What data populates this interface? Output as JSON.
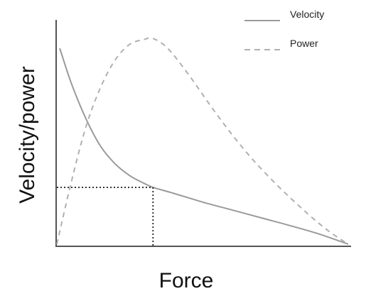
{
  "chart_data": {
    "type": "line",
    "title": "",
    "xlabel": "Force",
    "ylabel": "Velocity/power",
    "xlim": [
      0,
      1
    ],
    "ylim": [
      0,
      1
    ],
    "grid": false,
    "legend_placement": "top-right",
    "ticks": "none",
    "series": [
      {
        "name": "Velocity",
        "style": "solid",
        "color": "#9a9a9a",
        "points": [
          [
            0.01,
            1.0
          ],
          [
            0.05,
            0.82
          ],
          [
            0.1,
            0.64
          ],
          [
            0.15,
            0.5
          ],
          [
            0.2,
            0.41
          ],
          [
            0.25,
            0.35
          ],
          [
            0.3,
            0.31
          ],
          [
            0.33,
            0.29
          ],
          [
            0.4,
            0.26
          ],
          [
            0.5,
            0.215
          ],
          [
            0.6,
            0.175
          ],
          [
            0.7,
            0.135
          ],
          [
            0.8,
            0.095
          ],
          [
            0.9,
            0.052
          ],
          [
            1.0,
            0.0
          ]
        ]
      },
      {
        "name": "Power",
        "style": "dashed",
        "color": "#b0b0b0",
        "points": [
          [
            0.0,
            0.0
          ],
          [
            0.05,
            0.32
          ],
          [
            0.1,
            0.6
          ],
          [
            0.15,
            0.8
          ],
          [
            0.2,
            0.94
          ],
          [
            0.25,
            1.02
          ],
          [
            0.3,
            1.045
          ],
          [
            0.33,
            1.05
          ],
          [
            0.38,
            1.0
          ],
          [
            0.45,
            0.87
          ],
          [
            0.55,
            0.66
          ],
          [
            0.65,
            0.47
          ],
          [
            0.75,
            0.31
          ],
          [
            0.85,
            0.17
          ],
          [
            0.93,
            0.07
          ],
          [
            1.0,
            0.0
          ]
        ]
      }
    ],
    "reference_point": {
      "x": 0.33,
      "y": 0.29,
      "style": "dotted",
      "color": "#333333"
    }
  }
}
